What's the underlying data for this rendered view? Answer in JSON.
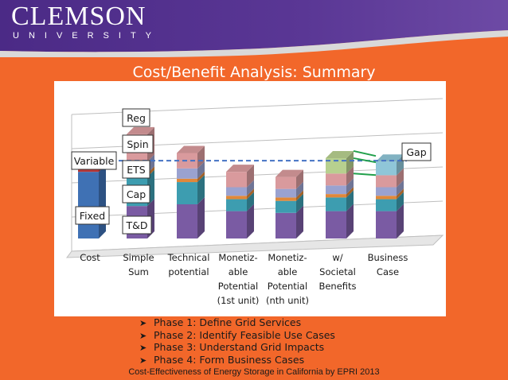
{
  "header": {
    "logo_main": "CLEMSON",
    "logo_sub": "UNIVERSITY"
  },
  "title": "Cost/Benefit Analysis: Summary",
  "colors": {
    "purple": "#7a5ba3",
    "teal": "#3d9db0",
    "orange": "#e0883a",
    "lavender": "#9aa2d0",
    "pink": "#d99a9d",
    "green": "#b7d08f",
    "blue": "#3f71b4",
    "red": "#b83838",
    "lightblue": "#8fc6d8",
    "dashed": "#4472c4"
  },
  "chart_data": {
    "type": "bar",
    "stacked": true,
    "categories": [
      [
        "Cost"
      ],
      [
        "Simple",
        "Sum"
      ],
      [
        "Technical",
        "potential"
      ],
      [
        "Monetiz-",
        "able",
        "Potential",
        "(1st unit)"
      ],
      [
        "Monetiz-",
        "able",
        "Potential",
        "(nth unit)"
      ],
      [
        "w/",
        "Societal",
        "Benefits"
      ],
      [
        "Business",
        "Case"
      ]
    ],
    "reference_line": {
      "value": 4.55,
      "style": "dashed"
    },
    "bars": [
      {
        "segments": [
          {
            "name": "Fixed",
            "value": 3.9,
            "color": "blue"
          },
          {
            "name": "Variable",
            "value": 0.6,
            "color": "red"
          }
        ]
      },
      {
        "segments": [
          {
            "name": "T&D",
            "value": 1.9,
            "color": "purple"
          },
          {
            "name": "Cap",
            "value": 1.7,
            "color": "teal"
          },
          {
            "name": "ETS",
            "value": 0.2,
            "color": "orange"
          },
          {
            "name": "Spin",
            "value": 0.7,
            "color": "lavender"
          },
          {
            "name": "Reg",
            "value": 1.6,
            "color": "pink"
          }
        ]
      },
      {
        "segments": [
          {
            "value": 2.0,
            "color": "purple"
          },
          {
            "value": 1.3,
            "color": "teal"
          },
          {
            "value": 0.2,
            "color": "orange"
          },
          {
            "value": 0.6,
            "color": "lavender"
          },
          {
            "value": 0.9,
            "color": "pink"
          }
        ]
      },
      {
        "segments": [
          {
            "value": 1.6,
            "color": "purple"
          },
          {
            "value": 0.7,
            "color": "teal"
          },
          {
            "value": 0.2,
            "color": "orange"
          },
          {
            "value": 0.5,
            "color": "lavender"
          },
          {
            "value": 0.9,
            "color": "pink"
          }
        ]
      },
      {
        "segments": [
          {
            "value": 1.5,
            "color": "purple"
          },
          {
            "value": 0.7,
            "color": "teal"
          },
          {
            "value": 0.2,
            "color": "orange"
          },
          {
            "value": 0.5,
            "color": "lavender"
          },
          {
            "value": 0.7,
            "color": "pink"
          }
        ]
      },
      {
        "segments": [
          {
            "value": 1.6,
            "color": "purple"
          },
          {
            "value": 0.8,
            "color": "teal"
          },
          {
            "value": 0.2,
            "color": "orange"
          },
          {
            "value": 0.5,
            "color": "lavender"
          },
          {
            "value": 0.7,
            "color": "pink"
          },
          {
            "value": 0.9,
            "color": "green"
          }
        ]
      },
      {
        "segments": [
          {
            "value": 1.6,
            "color": "purple"
          },
          {
            "value": 0.7,
            "color": "teal"
          },
          {
            "value": 0.2,
            "color": "orange"
          },
          {
            "value": 0.5,
            "color": "lavender"
          },
          {
            "value": 0.7,
            "color": "pink"
          },
          {
            "name": "Gap",
            "value": 0.8,
            "color": "lightblue"
          }
        ]
      }
    ],
    "ylim": [
      0,
      8
    ],
    "grid": true,
    "callouts": [
      "Reg",
      "Spin",
      "ETS",
      "Cap",
      "T&D",
      "Variable",
      "Fixed",
      "Gap"
    ]
  },
  "bullets": [
    "Phase 1: Define Grid Services",
    "Phase 2: Identify Feasible Use Cases",
    "Phase 3: Understand Grid Impacts",
    "Phase 4: Form Business Cases"
  ],
  "footer": "Cost-Effectiveness of Energy Storage in California by EPRI 2013"
}
